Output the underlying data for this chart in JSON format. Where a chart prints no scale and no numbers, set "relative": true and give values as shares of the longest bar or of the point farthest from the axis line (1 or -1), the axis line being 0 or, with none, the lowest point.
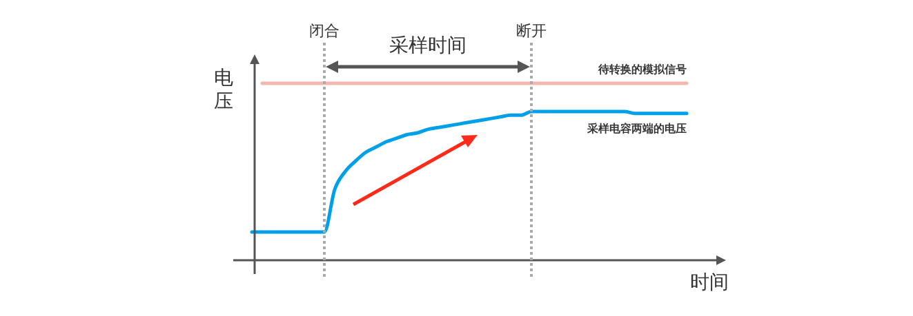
{
  "chart_data": {
    "type": "line",
    "relative": true,
    "xlabel": "时间",
    "ylabel": "电压",
    "tick_labels": false,
    "line_style": "solid",
    "categories": [
      null,
      null,
      null,
      null,
      null,
      null,
      null,
      null,
      null,
      null,
      null,
      null,
      null,
      null,
      null,
      null,
      null,
      null,
      null,
      null,
      null,
      null,
      null,
      null,
      null,
      null,
      null,
      null,
      null,
      null,
      null,
      null,
      null,
      null,
      null,
      null,
      null,
      null,
      null,
      null,
      null,
      null,
      null
    ],
    "series": [
      {
        "name": "待转换的模拟信号",
        "color": "#f4b6ae",
        "values": [
          null,
          1,
          1,
          1,
          1,
          1,
          1,
          1,
          1,
          1,
          1,
          1,
          1,
          1,
          1,
          1,
          1,
          1,
          1,
          1,
          1,
          1,
          1,
          1,
          1,
          1,
          1,
          1,
          1,
          1,
          1,
          1,
          1,
          1,
          1,
          1,
          1,
          1,
          1,
          1,
          1,
          1,
          1
        ]
      },
      {
        "name": "采样电容两端的电压",
        "color": "#00a0e9",
        "values": [
          0.16,
          0.16,
          0.16,
          0.16,
          0.16,
          0.16,
          0.16,
          0.16,
          0.4,
          0.5,
          0.56,
          0.61,
          0.64,
          0.67,
          0.69,
          0.71,
          0.72,
          0.74,
          0.75,
          0.76,
          0.77,
          0.78,
          0.79,
          0.8,
          0.81,
          0.82,
          0.82,
          0.84,
          0.84,
          0.84,
          0.84,
          0.84,
          0.84,
          0.84,
          0.84,
          0.84,
          0.84,
          0.83,
          0.83,
          0.83,
          0.83,
          0.83,
          0.83
        ]
      }
    ],
    "annotations": [
      "闭合",
      "断开",
      "采样时间"
    ]
  }
}
